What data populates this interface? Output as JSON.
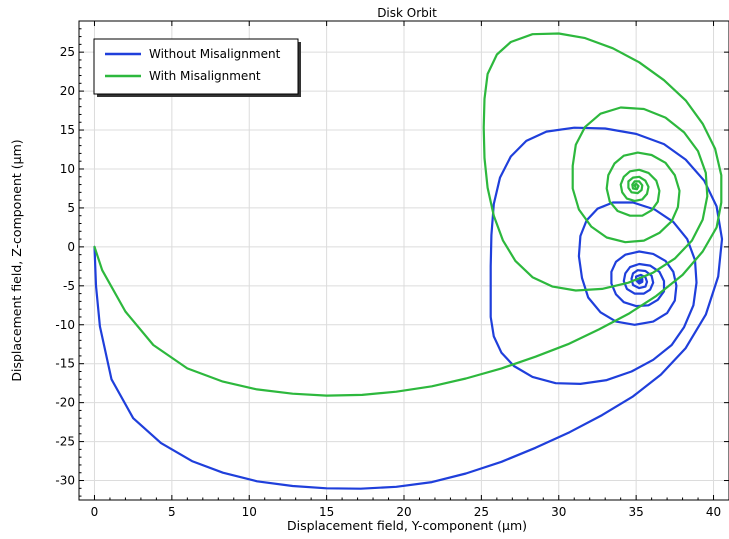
{
  "chart_data": {
    "type": "line",
    "title": "Disk Orbit",
    "xlabel": "Displacement field, Y-component (µm)",
    "ylabel": "Displacement field, Z-component (µm)",
    "xlim": [
      -1,
      41
    ],
    "ylim": [
      -32.5,
      29
    ],
    "xticks": [
      0,
      5,
      10,
      15,
      20,
      25,
      30,
      35,
      40
    ],
    "yticks": [
      -30,
      -25,
      -20,
      -15,
      -10,
      -5,
      0,
      5,
      10,
      15,
      20,
      25
    ],
    "grid": true,
    "legend_position": "top-left",
    "series": [
      {
        "name": "Without Misalignment",
        "color": "#1f3fdb",
        "points": [
          [
            0,
            0
          ],
          [
            0.1,
            -5
          ],
          [
            0.35,
            -10.2
          ],
          [
            1.1,
            -17
          ],
          [
            2.5,
            -22
          ],
          [
            4.3,
            -25.2
          ],
          [
            6.3,
            -27.5
          ],
          [
            8.3,
            -29
          ],
          [
            10.5,
            -30.1
          ],
          [
            12.8,
            -30.7
          ],
          [
            15,
            -31
          ],
          [
            17.2,
            -31.05
          ],
          [
            19.5,
            -30.8
          ],
          [
            21.8,
            -30.2
          ],
          [
            24,
            -29.1
          ],
          [
            26.3,
            -27.6
          ],
          [
            28.5,
            -25.8
          ],
          [
            30.7,
            -23.8
          ],
          [
            32.8,
            -21.6
          ],
          [
            34.8,
            -19.2
          ],
          [
            36.6,
            -16.4
          ],
          [
            38.2,
            -13
          ],
          [
            39.5,
            -8.7
          ],
          [
            40.3,
            -3.8
          ],
          [
            40.55,
            1
          ],
          [
            40.2,
            5.2
          ],
          [
            39.4,
            8.5
          ],
          [
            38.2,
            11.2
          ],
          [
            36.8,
            13.2
          ],
          [
            35,
            14.5
          ],
          [
            33,
            15.2
          ],
          [
            31,
            15.3
          ],
          [
            29.2,
            14.8
          ],
          [
            27.9,
            13.6
          ],
          [
            26.9,
            11.6
          ],
          [
            26.2,
            8.9
          ],
          [
            25.8,
            5.5
          ],
          [
            25.65,
            1.5
          ],
          [
            25.6,
            -2.5
          ],
          [
            25.6,
            -6
          ],
          [
            25.6,
            -9
          ],
          [
            25.8,
            -11.5
          ],
          [
            26.3,
            -13.6
          ],
          [
            27.1,
            -15.3
          ],
          [
            28.3,
            -16.7
          ],
          [
            29.8,
            -17.5
          ],
          [
            31.4,
            -17.6
          ],
          [
            33.1,
            -17.1
          ],
          [
            34.7,
            -16
          ],
          [
            36.1,
            -14.5
          ],
          [
            37.3,
            -12.6
          ],
          [
            38.1,
            -10.3
          ],
          [
            38.7,
            -7.5
          ],
          [
            38.9,
            -4.6
          ],
          [
            38.8,
            -1.7
          ],
          [
            38.3,
            1
          ],
          [
            37.4,
            3.2
          ],
          [
            36.2,
            4.8
          ],
          [
            34.8,
            5.7
          ],
          [
            33.5,
            5.7
          ],
          [
            32.5,
            4.9
          ],
          [
            31.8,
            3.4
          ],
          [
            31.4,
            1.4
          ],
          [
            31.3,
            -1.2
          ],
          [
            31.5,
            -4
          ],
          [
            31.9,
            -6.5
          ],
          [
            32.7,
            -8.4
          ],
          [
            33.7,
            -9.6
          ],
          [
            34.9,
            -10
          ],
          [
            36.1,
            -9.6
          ],
          [
            37,
            -8.5
          ],
          [
            37.5,
            -6.9
          ],
          [
            37.6,
            -5
          ],
          [
            37.4,
            -3.2
          ],
          [
            36.9,
            -1.8
          ],
          [
            36.1,
            -0.9
          ],
          [
            35.2,
            -0.6
          ],
          [
            34.3,
            -1
          ],
          [
            33.7,
            -1.9
          ],
          [
            33.4,
            -3.2
          ],
          [
            33.4,
            -4.7
          ],
          [
            33.7,
            -6.1
          ],
          [
            34.2,
            -7.1
          ],
          [
            35,
            -7.6
          ],
          [
            35.8,
            -7.5
          ],
          [
            36.4,
            -6.8
          ],
          [
            36.8,
            -5.7
          ],
          [
            36.8,
            -4.4
          ],
          [
            36.5,
            -3.2
          ],
          [
            35.9,
            -2.4
          ],
          [
            35.2,
            -2.2
          ],
          [
            34.6,
            -2.6
          ],
          [
            34.3,
            -3.4
          ],
          [
            34.2,
            -4.4
          ],
          [
            34.4,
            -5.4
          ],
          [
            34.9,
            -6
          ],
          [
            35.5,
            -6
          ],
          [
            35.9,
            -5.5
          ],
          [
            36.1,
            -4.6
          ],
          [
            36,
            -3.7
          ],
          [
            35.6,
            -3.1
          ],
          [
            35.1,
            -3
          ],
          [
            34.8,
            -3.4
          ],
          [
            34.7,
            -4.1
          ],
          [
            34.8,
            -4.9
          ],
          [
            35.2,
            -5.3
          ],
          [
            35.6,
            -5.1
          ],
          [
            35.7,
            -4.5
          ],
          [
            35.6,
            -3.9
          ],
          [
            35.3,
            -3.6
          ],
          [
            35,
            -3.8
          ],
          [
            35,
            -4.3
          ],
          [
            35.2,
            -4.7
          ],
          [
            35.4,
            -4.5
          ],
          [
            35.4,
            -4.1
          ],
          [
            35.25,
            -4
          ],
          [
            35.15,
            -4.2
          ],
          [
            35.2,
            -4.4
          ],
          [
            35.3,
            -4.3
          ]
        ]
      },
      {
        "name": "With Misalignment",
        "color": "#2db83d",
        "points": [
          [
            0,
            0
          ],
          [
            0.5,
            -3
          ],
          [
            2,
            -8.3
          ],
          [
            3.8,
            -12.6
          ],
          [
            6,
            -15.6
          ],
          [
            8.3,
            -17.3
          ],
          [
            10.5,
            -18.3
          ],
          [
            12.8,
            -18.85
          ],
          [
            15,
            -19.1
          ],
          [
            17.3,
            -19
          ],
          [
            19.5,
            -18.6
          ],
          [
            21.8,
            -17.9
          ],
          [
            24,
            -16.9
          ],
          [
            26.3,
            -15.6
          ],
          [
            28.5,
            -14.1
          ],
          [
            30.6,
            -12.5
          ],
          [
            32.6,
            -10.6
          ],
          [
            34.5,
            -8.6
          ],
          [
            36.3,
            -6.3
          ],
          [
            38,
            -3.6
          ],
          [
            39.3,
            -0.6
          ],
          [
            40.2,
            2.5
          ],
          [
            40.5,
            5.7
          ],
          [
            40.5,
            9.2
          ],
          [
            40.1,
            12.6
          ],
          [
            39.3,
            15.8
          ],
          [
            38.2,
            18.8
          ],
          [
            36.8,
            21.4
          ],
          [
            35.2,
            23.7
          ],
          [
            33.5,
            25.5
          ],
          [
            31.7,
            26.8
          ],
          [
            30,
            27.4
          ],
          [
            28.3,
            27.3
          ],
          [
            26.9,
            26.3
          ],
          [
            26,
            24.7
          ],
          [
            25.4,
            22.2
          ],
          [
            25.2,
            19
          ],
          [
            25.15,
            15.3
          ],
          [
            25.2,
            11.4
          ],
          [
            25.4,
            7.6
          ],
          [
            25.8,
            4
          ],
          [
            26.4,
            0.8
          ],
          [
            27.2,
            -1.8
          ],
          [
            28.3,
            -3.9
          ],
          [
            29.6,
            -5.1
          ],
          [
            31.1,
            -5.6
          ],
          [
            32.8,
            -5.4
          ],
          [
            34.5,
            -4.6
          ],
          [
            36.1,
            -3.3
          ],
          [
            37.5,
            -1.5
          ],
          [
            38.6,
            0.8
          ],
          [
            39.3,
            3.5
          ],
          [
            39.6,
            6.5
          ],
          [
            39.5,
            9.5
          ],
          [
            39,
            12.3
          ],
          [
            38.1,
            14.7
          ],
          [
            36.9,
            16.6
          ],
          [
            35.5,
            17.7
          ],
          [
            34,
            17.9
          ],
          [
            32.7,
            17.1
          ],
          [
            31.7,
            15.4
          ],
          [
            31.1,
            13.1
          ],
          [
            30.9,
            10.4
          ],
          [
            30.9,
            7.5
          ],
          [
            31.3,
            4.8
          ],
          [
            32.1,
            2.6
          ],
          [
            33.1,
            1.2
          ],
          [
            34.3,
            0.6
          ],
          [
            35.5,
            0.8
          ],
          [
            36.5,
            1.8
          ],
          [
            37.3,
            3.3
          ],
          [
            37.7,
            5.1
          ],
          [
            37.8,
            7.2
          ],
          [
            37.5,
            9.2
          ],
          [
            36.9,
            10.8
          ],
          [
            36,
            11.8
          ],
          [
            35.1,
            12.1
          ],
          [
            34.2,
            11.7
          ],
          [
            33.6,
            10.7
          ],
          [
            33.2,
            9.2
          ],
          [
            33.1,
            7.5
          ],
          [
            33.3,
            5.8
          ],
          [
            33.8,
            4.6
          ],
          [
            34.6,
            4
          ],
          [
            35.4,
            4
          ],
          [
            36,
            4.7
          ],
          [
            36.4,
            5.8
          ],
          [
            36.5,
            7.2
          ],
          [
            36.3,
            8.5
          ],
          [
            35.8,
            9.5
          ],
          [
            35.2,
            9.9
          ],
          [
            34.6,
            9.7
          ],
          [
            34.2,
            9
          ],
          [
            34,
            8
          ],
          [
            34.1,
            7
          ],
          [
            34.4,
            6.2
          ],
          [
            34.9,
            5.9
          ],
          [
            35.4,
            6.1
          ],
          [
            35.7,
            6.8
          ],
          [
            35.8,
            7.7
          ],
          [
            35.6,
            8.5
          ],
          [
            35.2,
            9
          ],
          [
            34.8,
            8.9
          ],
          [
            34.5,
            8.4
          ],
          [
            34.5,
            7.6
          ],
          [
            34.7,
            7
          ],
          [
            35.1,
            6.9
          ],
          [
            35.35,
            7.3
          ],
          [
            35.4,
            7.9
          ],
          [
            35.2,
            8.4
          ],
          [
            34.9,
            8.4
          ],
          [
            34.75,
            8
          ],
          [
            34.8,
            7.5
          ],
          [
            35.05,
            7.4
          ],
          [
            35.15,
            7.8
          ],
          [
            35,
            8.1
          ],
          [
            34.9,
            7.9
          ],
          [
            34.95,
            7.7
          ]
        ]
      }
    ]
  }
}
